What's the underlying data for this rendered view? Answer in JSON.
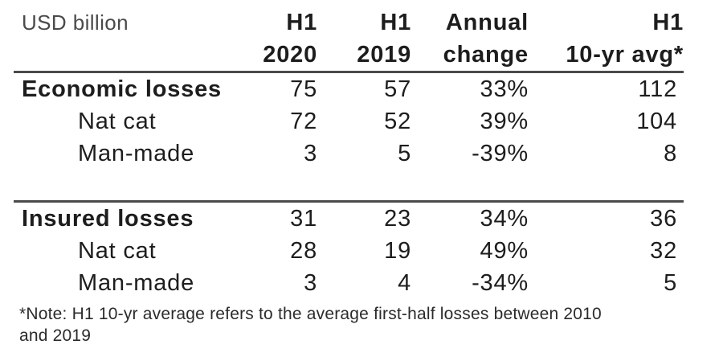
{
  "colors": {
    "text": "#1d1d1d",
    "muted_unit_label": "#4a4a4a",
    "rule": "#4b4b4b"
  },
  "chart_data": {
    "type": "table",
    "unit_label": "USD billion",
    "header": [
      {
        "line1": "H1",
        "line2": "2020"
      },
      {
        "line1": "H1",
        "line2": "2019"
      },
      {
        "line1": "Annual",
        "line2": "change"
      },
      {
        "line1": "H1",
        "line2": "10-yr avg*"
      }
    ],
    "rows": [
      {
        "label": "Economic losses",
        "bold": true,
        "indent": false,
        "values": [
          "75",
          "57",
          "33%",
          "112"
        ]
      },
      {
        "label": "Nat cat",
        "bold": false,
        "indent": true,
        "values": [
          "72",
          "52",
          "39%",
          "104"
        ]
      },
      {
        "label": "Man-made",
        "bold": false,
        "indent": true,
        "values": [
          "3",
          "5",
          "-39%",
          "8"
        ]
      },
      {
        "label": "Insured losses",
        "bold": true,
        "indent": false,
        "values": [
          "31",
          "23",
          "34%",
          "36"
        ]
      },
      {
        "label": "Nat cat",
        "bold": false,
        "indent": true,
        "values": [
          "28",
          "19",
          "49%",
          "32"
        ]
      },
      {
        "label": "Man-made",
        "bold": false,
        "indent": true,
        "values": [
          "3",
          "4",
          "-34%",
          "5"
        ]
      }
    ],
    "footnote_lines": [
      "*Note: H1 10-yr average refers to the average first-half losses between 2010",
      "and 2019"
    ]
  }
}
